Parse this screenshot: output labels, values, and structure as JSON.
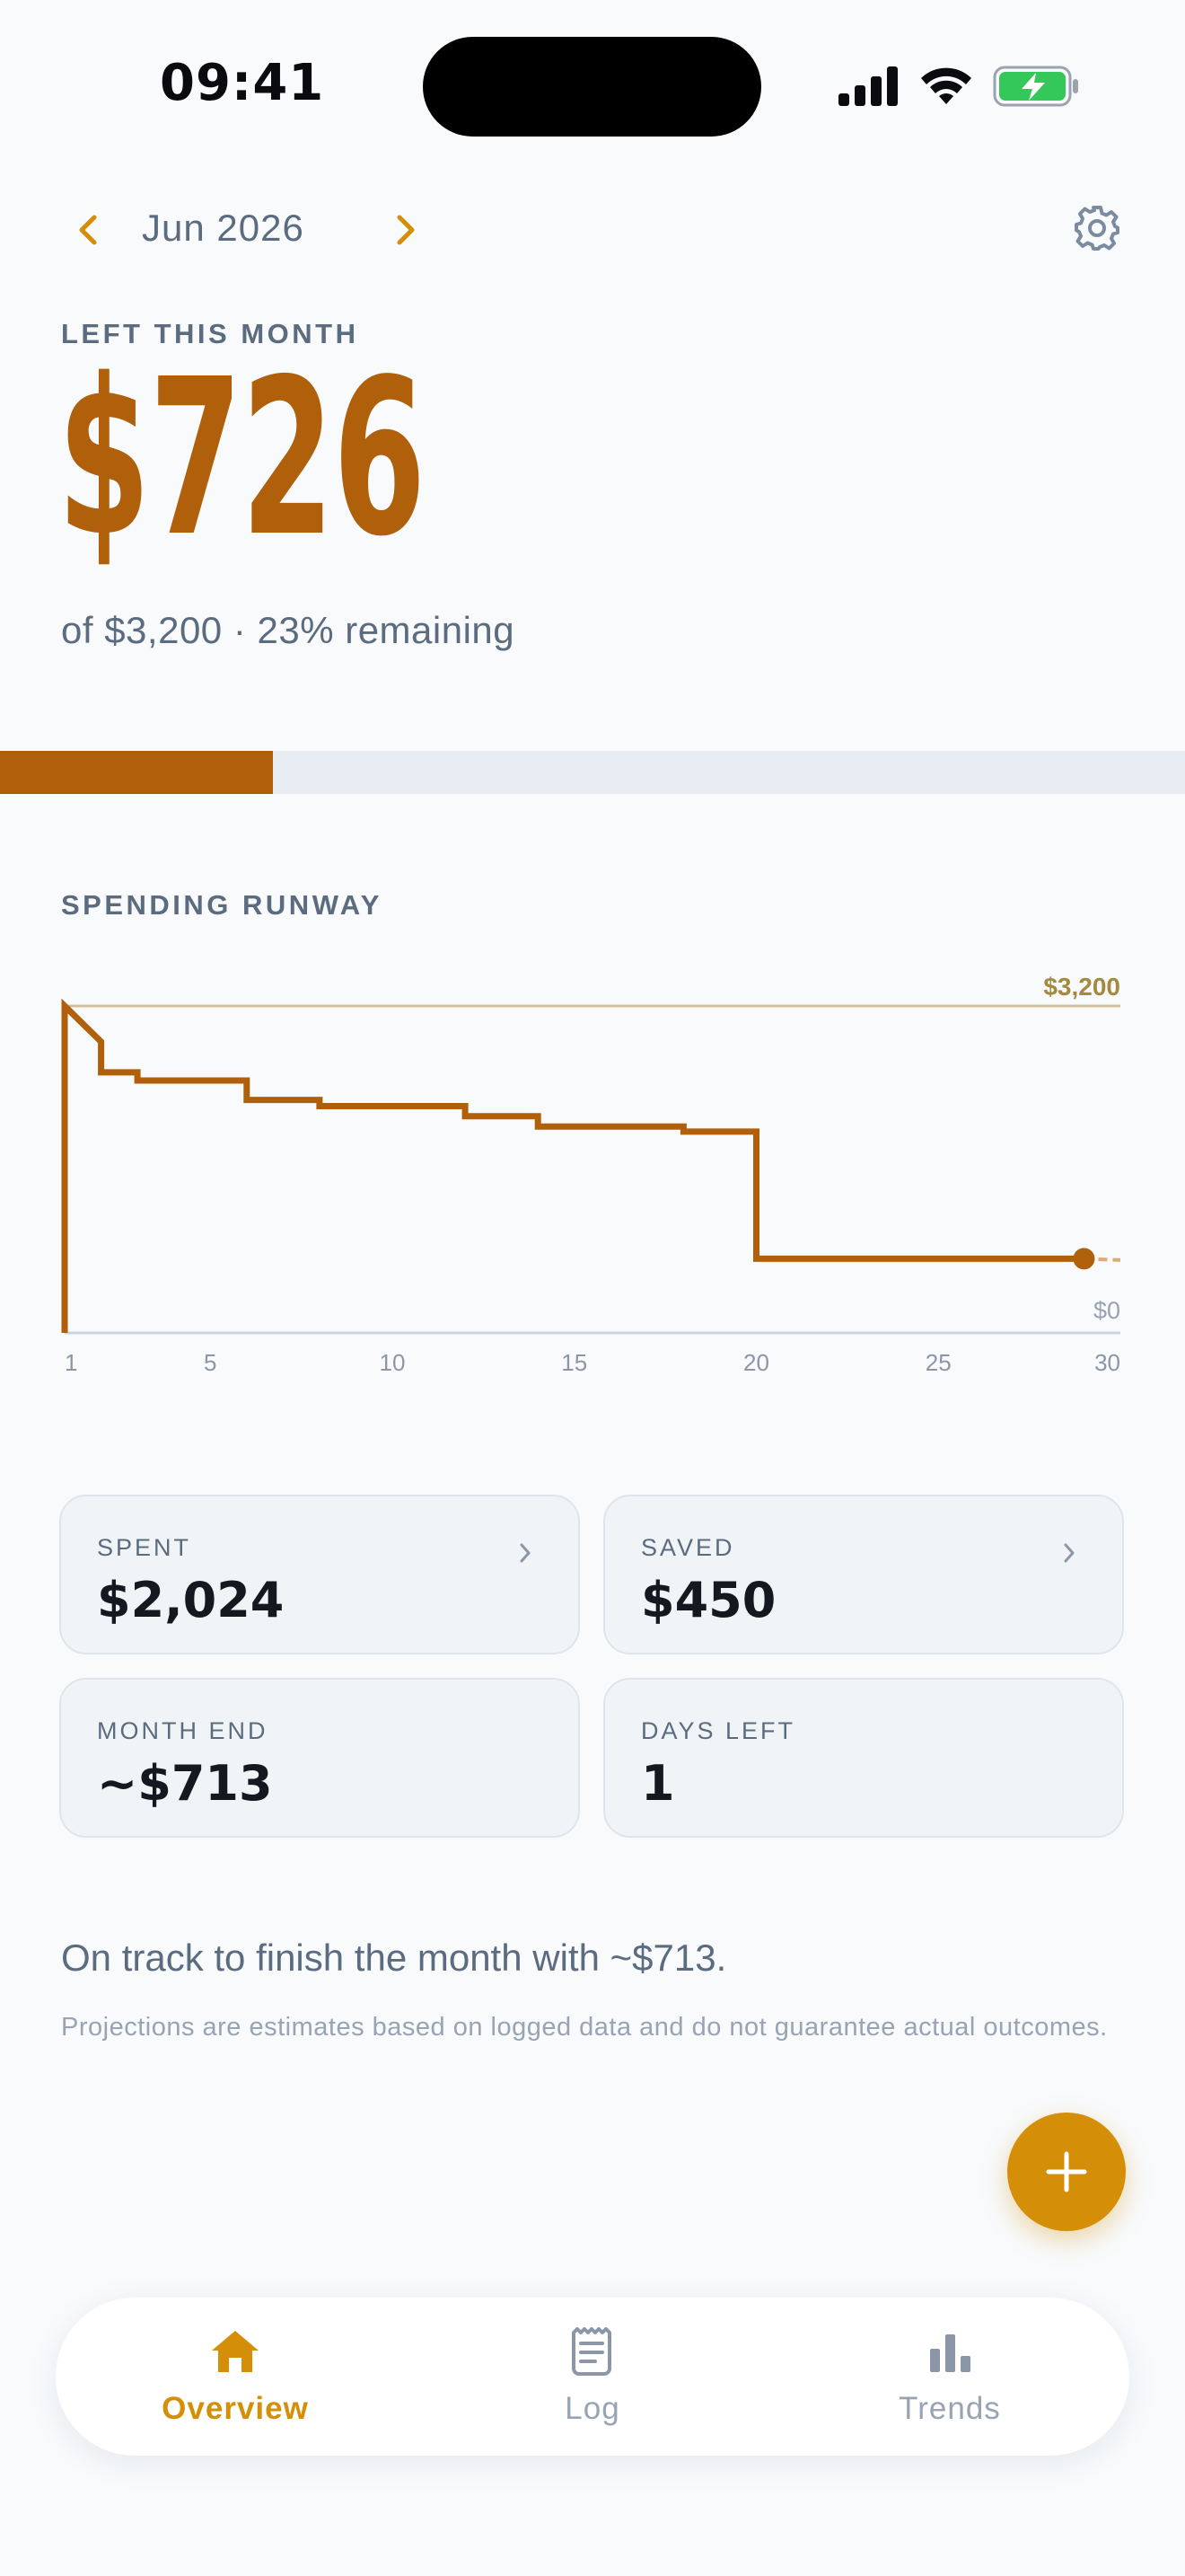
{
  "status_bar": {
    "time": "09:41",
    "icons": [
      "signal-icon",
      "wifi-icon",
      "battery-charging-icon"
    ]
  },
  "header": {
    "month": "Jun 2026",
    "prev_icon": "chevron-left-icon",
    "next_icon": "chevron-right-icon",
    "settings_icon": "gear-icon"
  },
  "summary": {
    "label": "LEFT THIS MONTH",
    "amount": "$726",
    "sub": "of $3,200 · 23% remaining",
    "remaining_fraction": 0.23
  },
  "runway": {
    "label": "SPENDING RUNWAY"
  },
  "chart_data": {
    "type": "line",
    "title": "SPENDING RUNWAY",
    "x_ticks": [
      "1",
      "5",
      "10",
      "15",
      "20",
      "25",
      "30"
    ],
    "xlim": [
      1,
      30
    ],
    "ylim": [
      0,
      3200
    ],
    "y_labels": {
      "top": "$3,200",
      "bottom": "$0"
    },
    "budget_line": 3200,
    "series": [
      {
        "x": [
          1,
          1,
          2,
          2,
          3,
          3,
          6,
          6,
          8,
          8,
          12,
          12,
          14,
          14,
          18,
          18,
          20,
          20,
          29
        ],
        "y": [
          0,
          3200,
          2850,
          2550,
          2550,
          2470,
          2470,
          2280,
          2280,
          2220,
          2220,
          2120,
          2120,
          2020,
          2020,
          1970,
          1970,
          726,
          726
        ]
      }
    ],
    "projection": {
      "x": [
        29,
        30
      ],
      "y": [
        726,
        713
      ]
    },
    "colors": {
      "series": "#b05f0a",
      "budget": "#cfc29b",
      "projection": "#e0a978",
      "axis": "#cbd5e1"
    },
    "grid": false
  },
  "cards": [
    {
      "label": "SPENT",
      "value": "$2,024",
      "chevron": true
    },
    {
      "label": "SAVED",
      "value": "$450",
      "chevron": true
    },
    {
      "label": "MONTH END",
      "value": "~$713",
      "chevron": false
    },
    {
      "label": "DAYS LEFT",
      "value": "1",
      "chevron": false
    }
  ],
  "insight": {
    "text": "On track to finish the month with ~$713.",
    "disclaimer": "Projections are estimates based on logged data and do not guarantee actual outcomes."
  },
  "fab": {
    "icon": "plus-icon"
  },
  "tabs": [
    {
      "label": "Overview",
      "icon": "home-icon",
      "active": true
    },
    {
      "label": "Log",
      "icon": "receipt-icon",
      "active": false
    },
    {
      "label": "Trends",
      "icon": "bar-chart-icon",
      "active": false
    }
  ],
  "colors": {
    "accent": "#b05f0a",
    "accent_bright": "#d48e08",
    "muted": "#5b6b80",
    "background": "#f8fafc"
  }
}
